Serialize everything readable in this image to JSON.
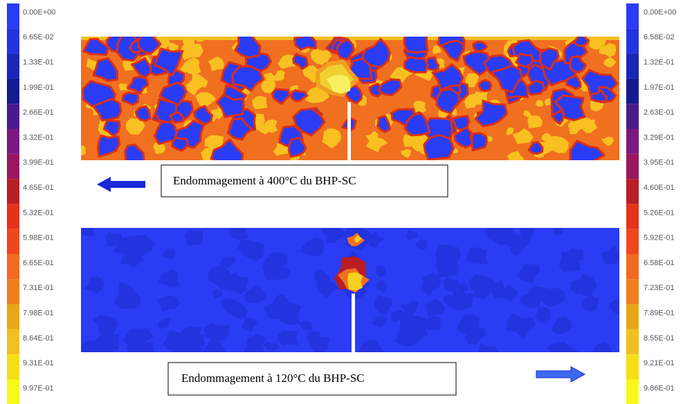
{
  "legend_left": {
    "labels": [
      "0.00E+00",
      "6.65E-02",
      "1.33E-01",
      "1.99E-01",
      "2.66E-01",
      "3.32E-01",
      "3.99E-01",
      "4.65E-01",
      "5.32E-01",
      "5.98E-01",
      "6.65E-01",
      "7.31E-01",
      "7.98E-01",
      "8.64E-01",
      "9.31E-01",
      "9.97E-01"
    ]
  },
  "legend_right": {
    "labels": [
      "0.00E+00",
      "6.58E-02",
      "1.32E-01",
      "1.97E-01",
      "2.63E-01",
      "3.29E-01",
      "3.95E-01",
      "4.60E-01",
      "5.26E-01",
      "5.92E-01",
      "6.58E-01",
      "7.23E-01",
      "7.89E-01",
      "8.55E-01",
      "9.21E-01",
      "9.86E-01"
    ]
  },
  "colors": [
    "#2b3cf5",
    "#2333e0",
    "#1a26b8",
    "#141a90",
    "#4a1a8c",
    "#7a1a80",
    "#9a1660",
    "#b81e24",
    "#e6321a",
    "#f0461c",
    "#f26a22",
    "#ee7e1c",
    "#e6a814",
    "#f0c020",
    "#f5e018",
    "#f8f81a"
  ],
  "captions": {
    "top": "Endommagement à 400°C du BHP-SC",
    "bottom": "Endommagement à 120°C du BHP-SC"
  }
}
